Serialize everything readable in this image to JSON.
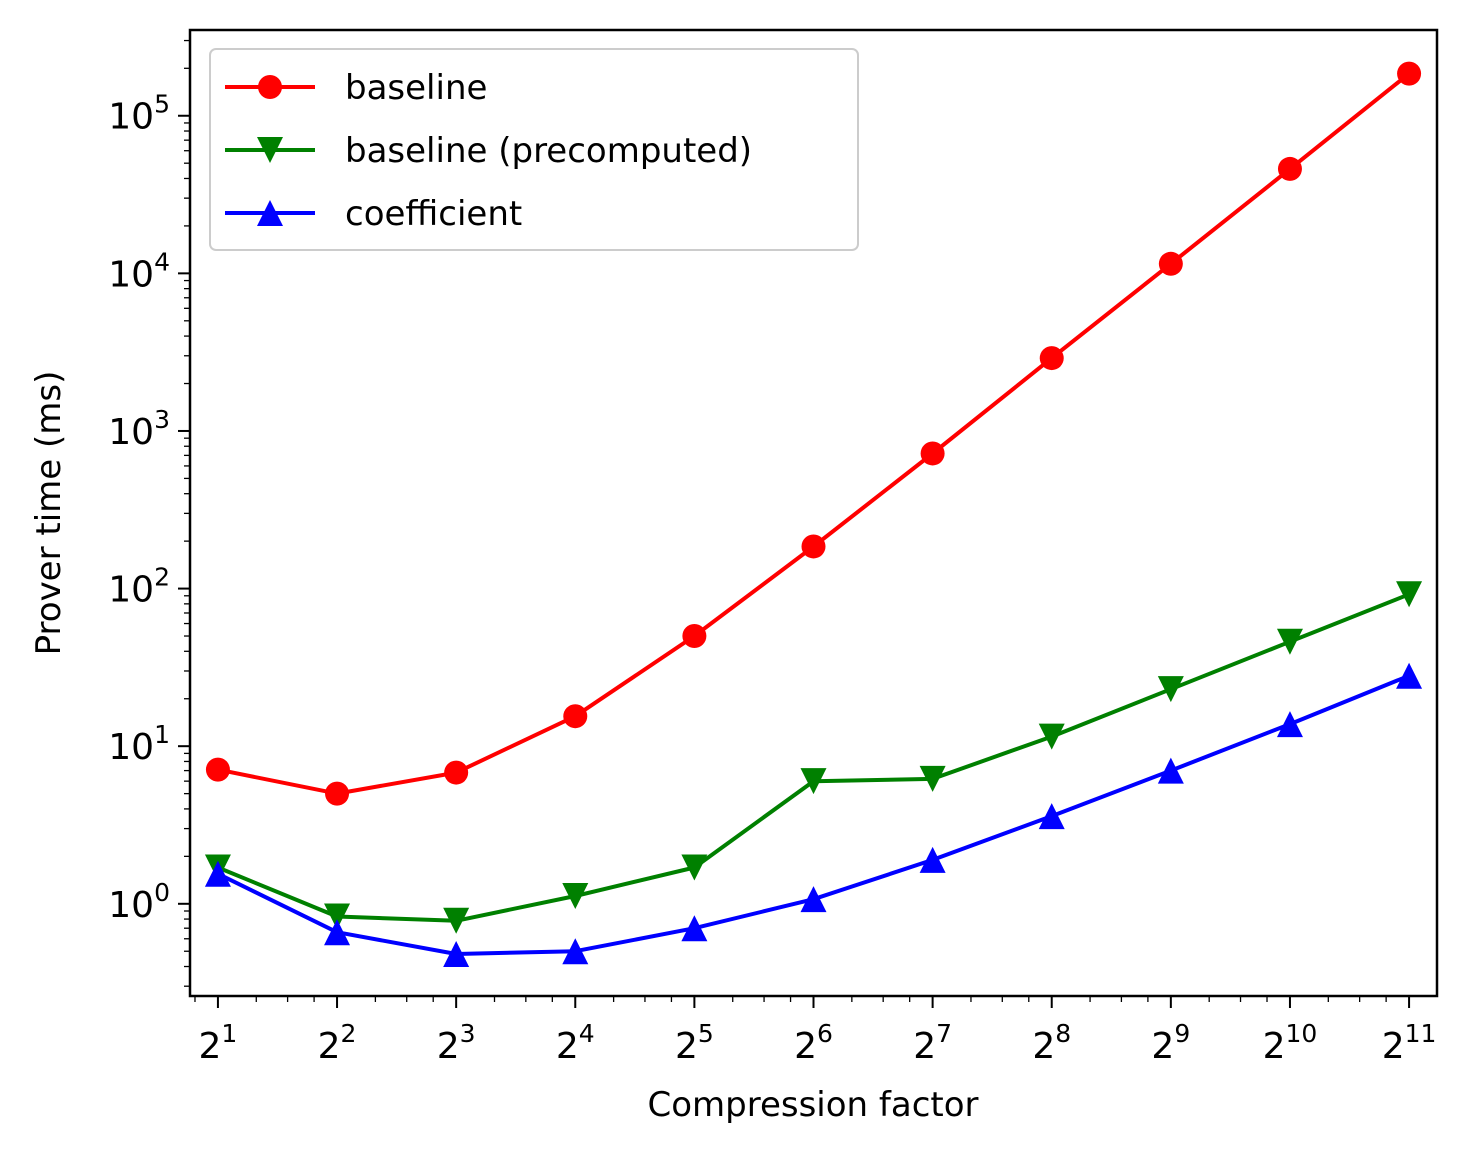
{
  "chart_data": {
    "type": "line",
    "xlabel": "Compression factor",
    "ylabel": "Prover time (ms)",
    "x_scale": "log2",
    "y_scale": "log10",
    "x": [
      2,
      4,
      8,
      16,
      32,
      64,
      128,
      256,
      512,
      1024,
      2048
    ],
    "x_tick_labels": [
      {
        "base": "2",
        "exp": "1"
      },
      {
        "base": "2",
        "exp": "2"
      },
      {
        "base": "2",
        "exp": "3"
      },
      {
        "base": "2",
        "exp": "4"
      },
      {
        "base": "2",
        "exp": "5"
      },
      {
        "base": "2",
        "exp": "6"
      },
      {
        "base": "2",
        "exp": "7"
      },
      {
        "base": "2",
        "exp": "8"
      },
      {
        "base": "2",
        "exp": "9"
      },
      {
        "base": "2",
        "exp": "10"
      },
      {
        "base": "2",
        "exp": "11"
      }
    ],
    "y_tick_labels": [
      {
        "base": "10",
        "exp": "0",
        "value": 1
      },
      {
        "base": "10",
        "exp": "1",
        "value": 10
      },
      {
        "base": "10",
        "exp": "2",
        "value": 100
      },
      {
        "base": "10",
        "exp": "3",
        "value": 1000
      },
      {
        "base": "10",
        "exp": "4",
        "value": 10000
      },
      {
        "base": "10",
        "exp": "5",
        "value": 100000
      }
    ],
    "ylim": [
      0.26,
      350000
    ],
    "grid": false,
    "legend_position": "top-left",
    "series": [
      {
        "name": "baseline",
        "color": "#ff0000",
        "marker": "circle",
        "values": [
          7.1,
          5.0,
          6.8,
          15.5,
          50,
          185,
          720,
          2900,
          11500,
          46000,
          185000
        ]
      },
      {
        "name": "baseline (precomputed)",
        "color": "#008000",
        "marker": "triangle-down",
        "values": [
          1.7,
          0.83,
          0.78,
          1.12,
          1.7,
          6.0,
          6.2,
          11.5,
          23,
          46,
          92
        ]
      },
      {
        "name": "coefficient",
        "color": "#0000ff",
        "marker": "triangle-up",
        "values": [
          1.55,
          0.66,
          0.48,
          0.5,
          0.7,
          1.07,
          1.9,
          3.6,
          7.0,
          13.8,
          28
        ]
      }
    ]
  }
}
